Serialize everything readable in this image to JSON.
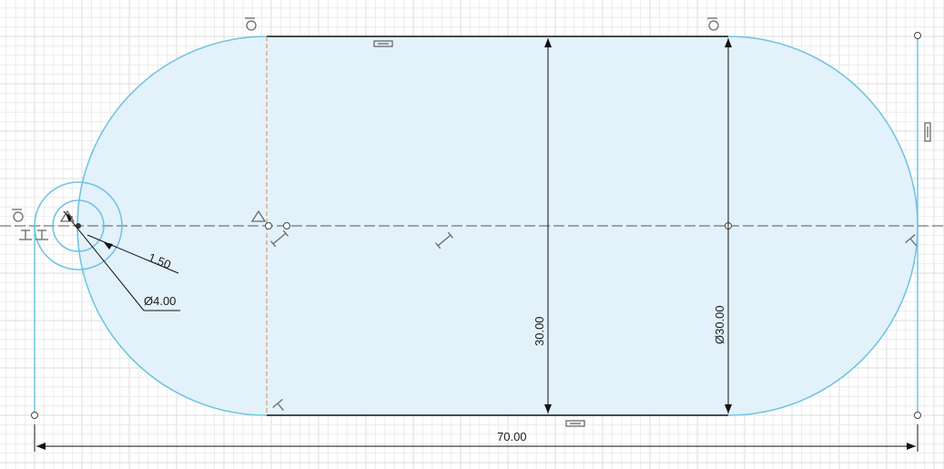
{
  "viewport": {
    "name": "Sketch canvas",
    "background": "#ffffff",
    "grid_minor_color": "#ececec",
    "grid_major_color": "#dcdcdc"
  },
  "colors": {
    "profile_fill": "#e3f1fb",
    "sketch_curve": "#6cc4e0",
    "constrained_line": "#111111",
    "construction_line": "#d9a06b",
    "centerline": "#555555",
    "dimension_line": "#111111",
    "constraint_glyph": "#6a6a6a"
  },
  "dimensions": {
    "overall_length": "70.00",
    "height": "30.00",
    "arc_diameter": "Ø30.00",
    "hole_diameter": "Ø4.00",
    "ring_offset": "1.50"
  },
  "constraint_icons": [
    "tangent-icon",
    "horizontal-icon",
    "vertical-icon",
    "coincident-icon",
    "midpoint-icon",
    "perpendicular-icon",
    "fix-icon"
  ]
}
